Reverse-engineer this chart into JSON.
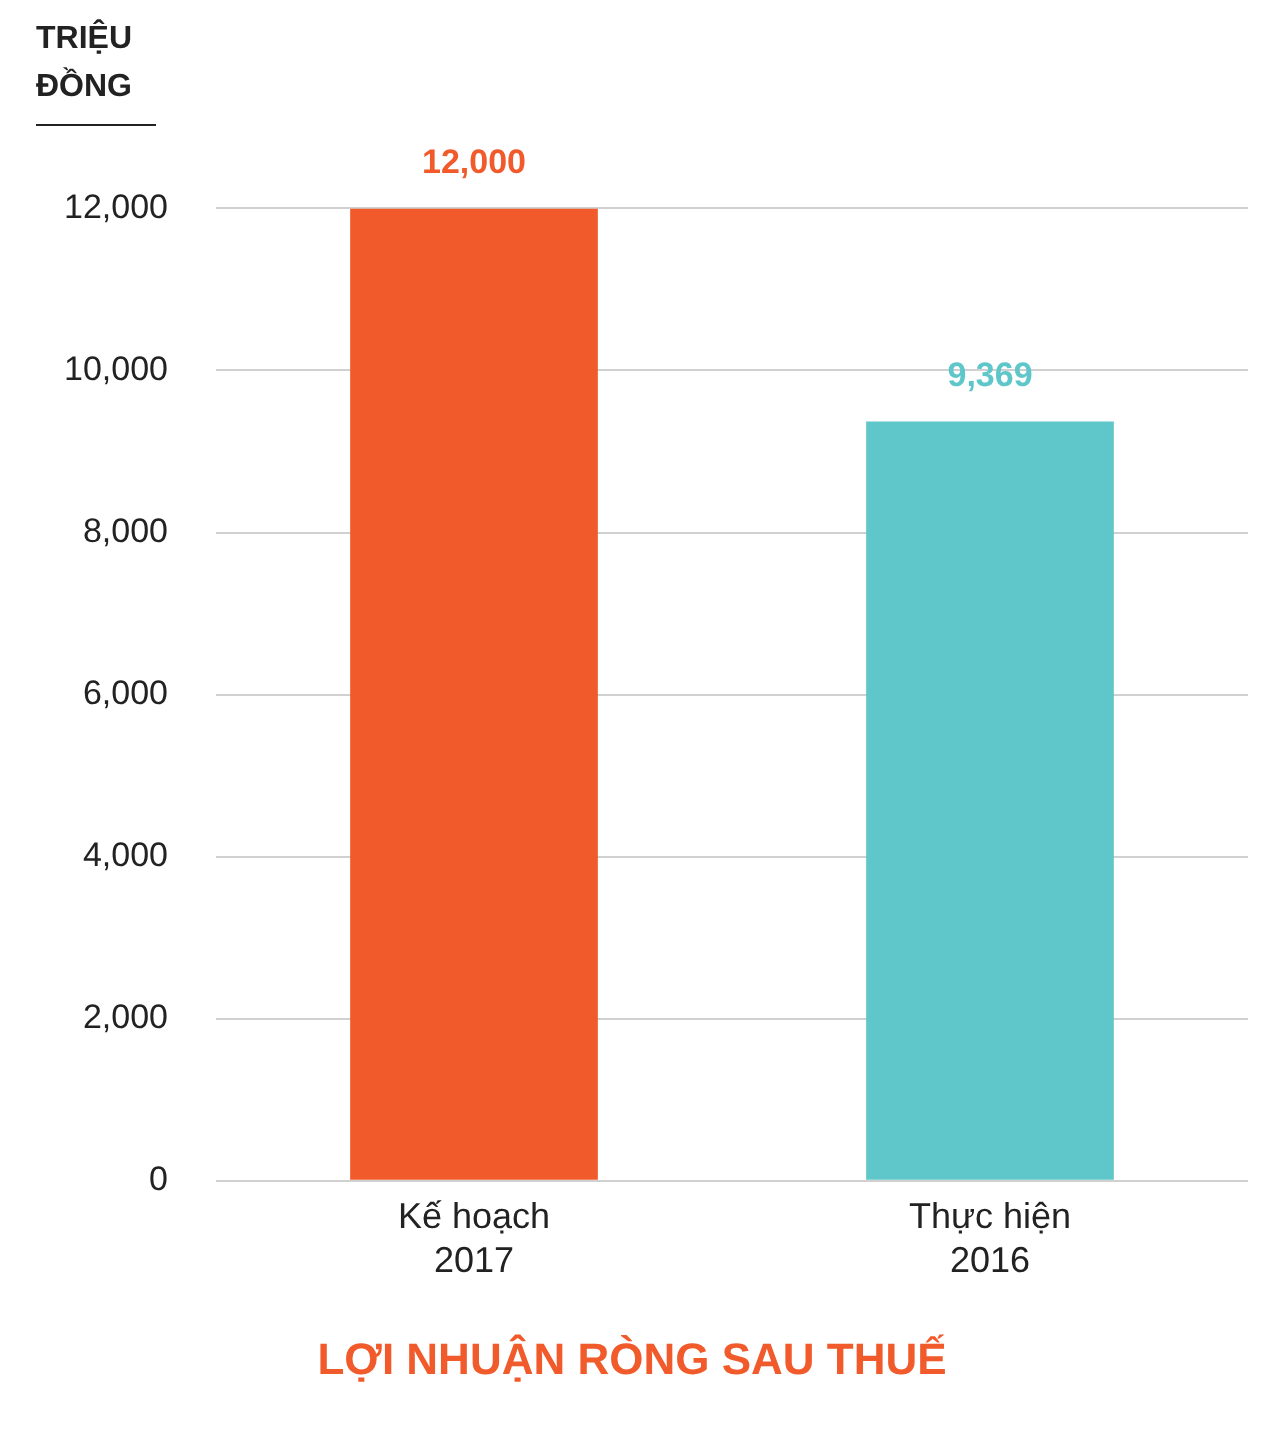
{
  "chart_data": {
    "type": "bar",
    "title": "LỢI NHUẬN RÒNG SAU THUẾ",
    "ylabel": "TRIỆU ĐỒNG",
    "categories": [
      "Kế hoạch 2017",
      "Thực hiện 2016"
    ],
    "values": [
      12000,
      9369
    ],
    "colors": [
      "#f15a2b",
      "#5fc6c9"
    ],
    "value_labels": [
      "12,000",
      "9,369"
    ],
    "ylim": [
      0,
      12000
    ],
    "yticks": [
      0,
      {
        "value": 2000,
        "label": "2,000"
      },
      {
        "value": 4000,
        "label": "4,000"
      },
      {
        "value": 6000,
        "label": "6,000"
      },
      {
        "value": 8000,
        "label": "8,000"
      },
      {
        "value": 10000,
        "label": "10,000"
      },
      {
        "value": 12000,
        "label": "12,000"
      }
    ],
    "grid": "y"
  }
}
